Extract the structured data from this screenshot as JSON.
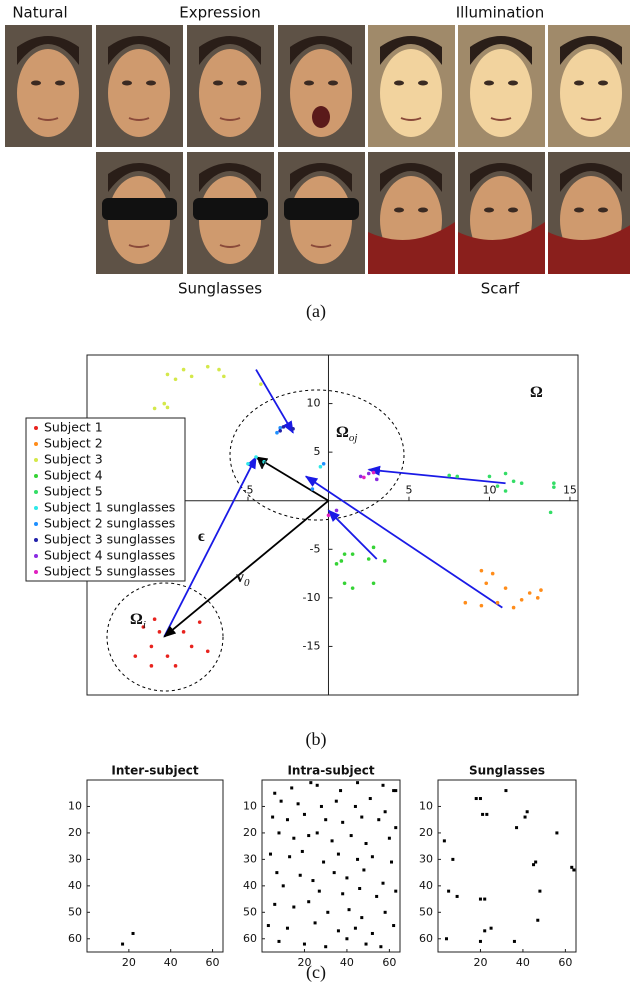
{
  "figure_a": {
    "labels": [
      "Natural",
      "Expression",
      "Illumination",
      "Sunglasses",
      "Scarf"
    ]
  },
  "captions": [
    "(a)",
    "(b)",
    "(c)"
  ],
  "chart_data": [
    {
      "type": "scatter",
      "xlim": [
        -15,
        15.5
      ],
      "ylim": [
        -20,
        15
      ],
      "xticks": [
        -5,
        5,
        10,
        15
      ],
      "yticks": [
        10,
        5,
        -5,
        -10,
        -15
      ],
      "legend": "left",
      "series": [
        {
          "name": "Subject 1",
          "color": "#e8231e",
          "x": [
            -11.5,
            -10.5,
            -9,
            -8,
            -11,
            -12,
            -10,
            -8.5,
            -7.5,
            -11,
            -9.5,
            -10.8
          ],
          "y": [
            -13,
            -13.5,
            -13.5,
            -12.5,
            -15,
            -16,
            -16,
            -15,
            -15.5,
            -17,
            -17,
            -12.2
          ]
        },
        {
          "name": "Subject 2",
          "color": "#ff8c1a",
          "x": [
            9.5,
            10.2,
            9.8,
            11,
            12.5,
            13.2,
            8.5,
            9.5,
            10.5,
            12,
            13,
            11.5
          ],
          "y": [
            -7.2,
            -7.5,
            -8.5,
            -9,
            -9.5,
            -9.2,
            -10.5,
            -10.8,
            -10.5,
            -10.2,
            -10,
            -11
          ]
        },
        {
          "name": "Subject 3",
          "color": "#d4e84a",
          "x": [
            -10,
            -9,
            -7.5,
            -6.8,
            -8.5,
            -9.5,
            -4.2,
            -10.2,
            -10.8,
            -10,
            -6.5
          ],
          "y": [
            13,
            13.5,
            13.8,
            13.5,
            12.8,
            12.5,
            12,
            10,
            9.5,
            9.6,
            12.8
          ]
        },
        {
          "name": "Subject 4",
          "color": "#35d335",
          "x": [
            1,
            1.5,
            0.8,
            2.5,
            3.5,
            2.8,
            1,
            1.5,
            2.8,
            0.5
          ],
          "y": [
            -5.5,
            -5.5,
            -6.2,
            -6,
            -6.2,
            -4.8,
            -8.5,
            -9,
            -8.5,
            -6.5
          ]
        },
        {
          "name": "Subject 5",
          "color": "#33dd66",
          "x": [
            8,
            10,
            11,
            11.5,
            12,
            10.5,
            11,
            14,
            14,
            13.8,
            7.5
          ],
          "y": [
            2.5,
            2.5,
            2.8,
            2,
            1.8,
            1.5,
            1,
            1.8,
            1.4,
            -1.2,
            2.6
          ]
        },
        {
          "name": "Subject 1 sunglasses",
          "color": "#2ee8e8",
          "x": [
            -4.5,
            -5,
            -4,
            -0.5
          ],
          "y": [
            4.5,
            3.8,
            4,
            3.5
          ]
        },
        {
          "name": "Subject 2 sunglasses",
          "color": "#1e90ff",
          "x": [
            -3,
            -3.2,
            -0.3,
            -1
          ],
          "y": [
            7.5,
            7,
            3.8,
            1.2
          ]
        },
        {
          "name": "Subject 3 sunglasses",
          "color": "#2222aa",
          "x": [
            -2.8,
            -3,
            -2.2
          ],
          "y": [
            7.6,
            7.2,
            7.4
          ]
        },
        {
          "name": "Subject 4 sunglasses",
          "color": "#8a2be2",
          "x": [
            0.5,
            2,
            2.5,
            3
          ],
          "y": [
            -1,
            2.5,
            2.8,
            2.2
          ]
        },
        {
          "name": "Subject 5 sunglasses",
          "color": "#e020c0",
          "x": [
            2.8,
            2.2,
            0
          ],
          "y": [
            2.9,
            2.4,
            -1.5
          ]
        }
      ],
      "arrows": [
        {
          "color": "#1a1ae6",
          "x": [
            -4.5,
            -2.2
          ],
          "y": [
            13.5,
            7
          ]
        },
        {
          "color": "#1a1ae6",
          "x": [
            -10.2,
            -4.5
          ],
          "y": [
            -14,
            4.5
          ]
        },
        {
          "color": "#1a1ae6",
          "x": [
            11,
            2.5
          ],
          "y": [
            1.8,
            3.2
          ]
        },
        {
          "color": "#1a1ae6",
          "x": [
            10.8,
            -1.4
          ],
          "y": [
            -11,
            2.5
          ]
        },
        {
          "color": "#1a1ae6",
          "x": [
            3,
            0
          ],
          "y": [
            -6,
            -1
          ]
        },
        {
          "color": "#000000",
          "x": [
            0,
            -4.5
          ],
          "y": [
            0,
            4.5
          ]
        },
        {
          "color": "#000000",
          "x": [
            0,
            -10.2
          ],
          "y": [
            0,
            -14
          ]
        }
      ],
      "annotations": [
        {
          "main": "Ω"
        },
        {
          "main": "Ω",
          "sub": "oj"
        },
        {
          "main": "v"
        },
        {
          "main": "ϵ"
        },
        {
          "main": "v",
          "sub": "0"
        },
        {
          "main": "Ω",
          "sub": "i"
        }
      ]
    },
    {
      "type": "spy",
      "title": "Inter-subject",
      "xlim": [
        0,
        65
      ],
      "ylim": [
        0,
        65
      ],
      "y_reversed": true,
      "xticks": [
        20,
        40,
        60
      ],
      "yticks": [
        10,
        20,
        30,
        40,
        50,
        60
      ],
      "color": "#000000",
      "x": [
        17,
        22
      ],
      "y": [
        62,
        58
      ]
    },
    {
      "type": "spy",
      "title": "Intra-subject",
      "xlim": [
        0,
        65
      ],
      "ylim": [
        0,
        65
      ],
      "y_reversed": true,
      "xticks": [
        20,
        40,
        60
      ],
      "yticks": [
        10,
        20,
        30,
        40,
        50,
        60
      ],
      "color": "#000000",
      "x": [
        6,
        14,
        23,
        26,
        37,
        45,
        57,
        62,
        63,
        9,
        17,
        28,
        35,
        44,
        51,
        58,
        5,
        12,
        20,
        30,
        38,
        47,
        55,
        63,
        8,
        15,
        22,
        26,
        33,
        42,
        49,
        60,
        4,
        13,
        19,
        29,
        36,
        45,
        52,
        61,
        7,
        18,
        24,
        34,
        40,
        48,
        57,
        10,
        27,
        38,
        46,
        54,
        63,
        6,
        15,
        22,
        31,
        41,
        47,
        58,
        3,
        12,
        25,
        36,
        44,
        52,
        62,
        8,
        20,
        30,
        40,
        49,
        56
      ],
      "y": [
        5,
        3,
        1,
        2,
        4,
        1,
        2,
        4,
        4,
        8,
        9,
        10,
        8,
        10,
        7,
        12,
        14,
        15,
        13,
        15,
        16,
        14,
        15,
        18,
        20,
        22,
        21,
        20,
        23,
        21,
        24,
        22,
        28,
        29,
        27,
        31,
        28,
        30,
        29,
        31,
        35,
        36,
        38,
        35,
        37,
        34,
        39,
        40,
        42,
        43,
        41,
        44,
        42,
        47,
        48,
        46,
        50,
        49,
        52,
        50,
        55,
        56,
        54,
        57,
        56,
        58,
        55,
        61,
        62,
        63,
        60,
        62,
        63
      ]
    },
    {
      "type": "spy",
      "title": "Sunglasses",
      "xlim": [
        0,
        65
      ],
      "ylim": [
        0,
        65
      ],
      "y_reversed": true,
      "xticks": [
        20,
        40,
        60
      ],
      "yticks": [
        10,
        20,
        30,
        40,
        50,
        60
      ],
      "color": "#000000",
      "x": [
        32,
        18,
        20,
        21,
        23,
        42,
        41,
        37,
        56,
        3,
        7,
        46,
        45,
        63,
        64,
        5,
        9,
        20,
        22,
        48,
        47,
        22,
        25,
        4,
        20,
        36
      ],
      "y": [
        4,
        7,
        7,
        13,
        13,
        12,
        14,
        18,
        20,
        23,
        30,
        31,
        32,
        33,
        34,
        42,
        44,
        45,
        45,
        42,
        53,
        57,
        56,
        60,
        61,
        61
      ]
    }
  ]
}
